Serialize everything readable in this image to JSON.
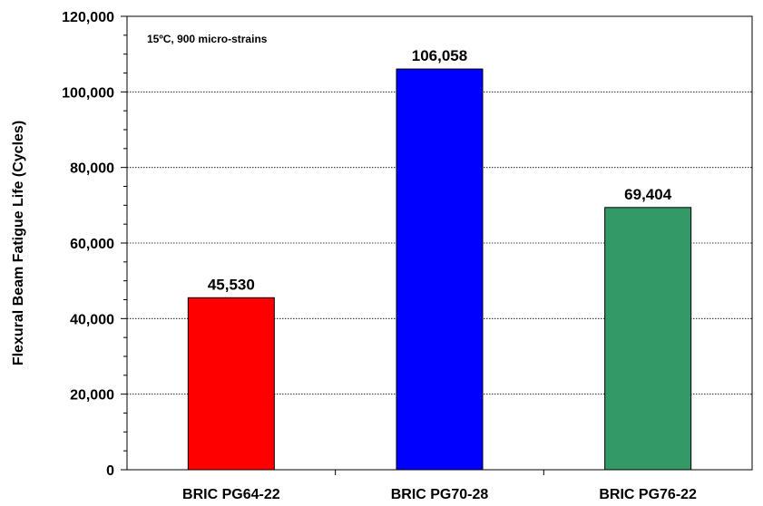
{
  "chart_data": {
    "type": "bar",
    "title": "",
    "annotation": "15ºC, 900 micro-strains",
    "xlabel": "",
    "ylabel": "Flexural Beam Fatigue Life (Cycles)",
    "ylim": [
      0,
      120000
    ],
    "ytick_step": 20000,
    "ytick_labels": [
      "0",
      "20,000",
      "40,000",
      "60,000",
      "80,000",
      "100,000",
      "120,000"
    ],
    "grid": true,
    "categories": [
      "BRIC PG64-22",
      "BRIC PG70-28",
      "BRIC PG76-22"
    ],
    "values": [
      45530,
      106058,
      69404
    ],
    "value_labels": [
      "45,530",
      "106,058",
      "69,404"
    ],
    "colors": [
      "#ff0000",
      "#0000ff",
      "#339966"
    ]
  }
}
